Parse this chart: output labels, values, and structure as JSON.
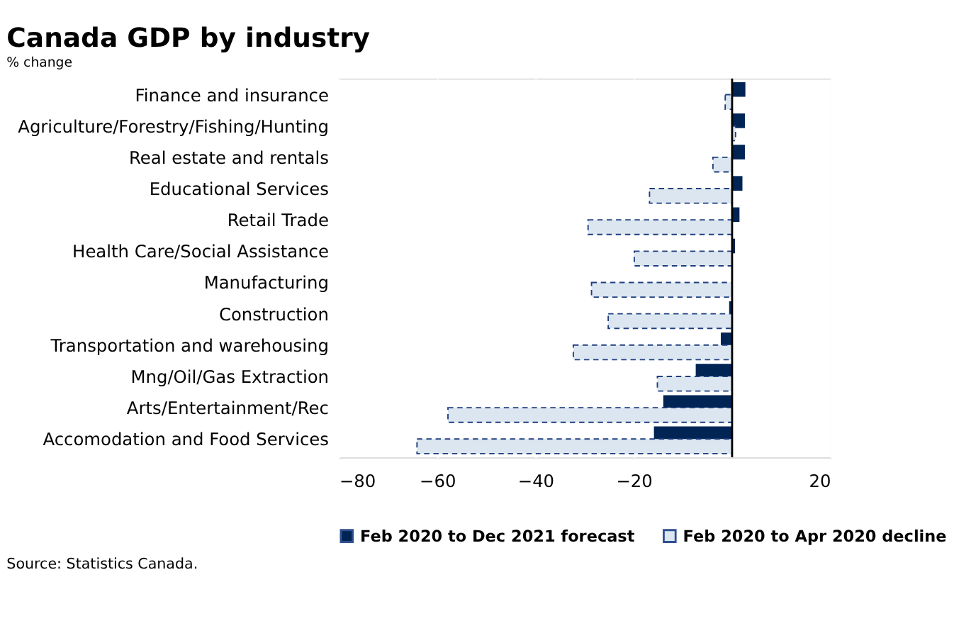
{
  "chart_data": {
    "type": "bar",
    "orientation": "horizontal",
    "title": "Canada GDP by industry",
    "subtitle": "% change",
    "categories": [
      "Finance and insurance",
      "Agriculture/Forestry/Fishing/Hunting",
      "Real estate and rentals",
      "Educational Services",
      "Retail Trade",
      "Health Care/Social Assistance",
      "Manufacturing",
      "Construction",
      "Transportation and warehousing",
      "Mng/Oil/Gas Extraction",
      "Arts/Entertainment/Rec",
      "Accomodation and Food Services"
    ],
    "series": [
      {
        "name": "Feb 2020 to Dec 2021 forecast",
        "color": "#002454",
        "line_style": "solid",
        "values": [
          2.7,
          2.6,
          2.6,
          2.1,
          1.5,
          0.6,
          0.1,
          -0.6,
          -2.3,
          -7.4,
          -14.0,
          -15.9
        ]
      },
      {
        "name": "Feb 2020 to Apr 2020 decline",
        "color": "#dce6f0",
        "line_style": "dashed",
        "values": [
          -1.4,
          0.7,
          -3.9,
          -16.8,
          -29.3,
          -19.9,
          -28.6,
          -25.2,
          -32.3,
          -15.2,
          -57.8,
          -64.1
        ]
      }
    ],
    "xlim": [
      -80,
      20
    ],
    "xticks": [
      -80,
      -60,
      -40,
      -20,
      20
    ],
    "grid": "x",
    "legend": "bottom",
    "ref_lines": [
      {
        "axis": "x",
        "value": 0,
        "color": "#000000"
      }
    ],
    "annotations": [
      "Source: Statistics Canada."
    ]
  }
}
